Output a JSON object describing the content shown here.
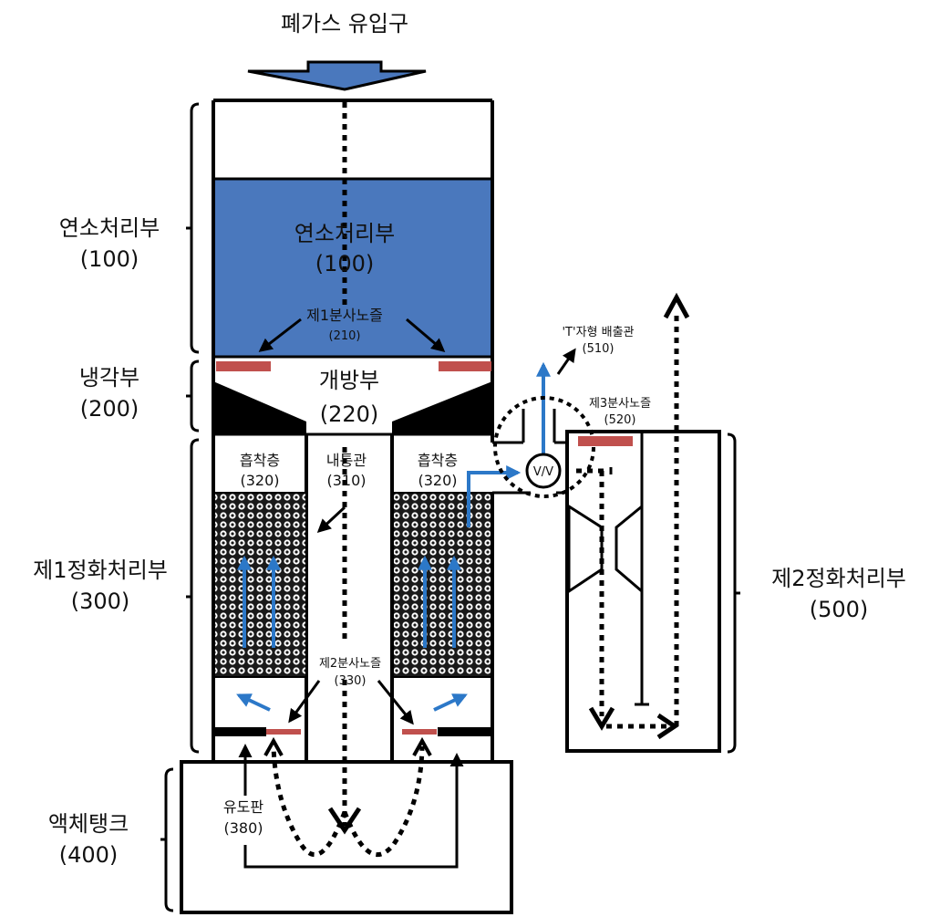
{
  "colors": {
    "combustion_fill": "#4a78bd",
    "nozzle_red": "#c0504d",
    "flow_blue": "#2c78c8",
    "adsorbent_pattern": "#1a1a1a"
  },
  "labels": {
    "inlet": "폐가스 유입구",
    "combustion_title": "연소처리부",
    "combustion_num": "(100)",
    "nozzle1_title": "제1분사노즐",
    "nozzle1_num": "(210)",
    "opening_title": "개방부",
    "opening_num": "(220)",
    "adsorb_left_title": "흡착층",
    "adsorb_left_num": "(320)",
    "inner_tube_title": "내통관",
    "inner_tube_num": "(310)",
    "adsorb_right_title": "흡착층",
    "adsorb_right_num": "(320)",
    "nozzle2_title": "제2분사노즐",
    "nozzle2_num": "(330)",
    "guide_title": "유도판",
    "guide_num": "(380)",
    "tpipe_title": "'T'자형 배출관",
    "tpipe_num": "(510)",
    "nozzle3_title": "제3분사노즐",
    "nozzle3_num": "(520)",
    "valve": "V/V"
  },
  "brackets": [
    {
      "title": "연소처리부",
      "num": "(100)"
    },
    {
      "title": "냉각부",
      "num": "(200)"
    },
    {
      "title": "제1정화처리부",
      "num": "(300)"
    },
    {
      "title": "액체탱크",
      "num": "(400)"
    },
    {
      "title": "제2정화처리부",
      "num": "(500)"
    }
  ]
}
